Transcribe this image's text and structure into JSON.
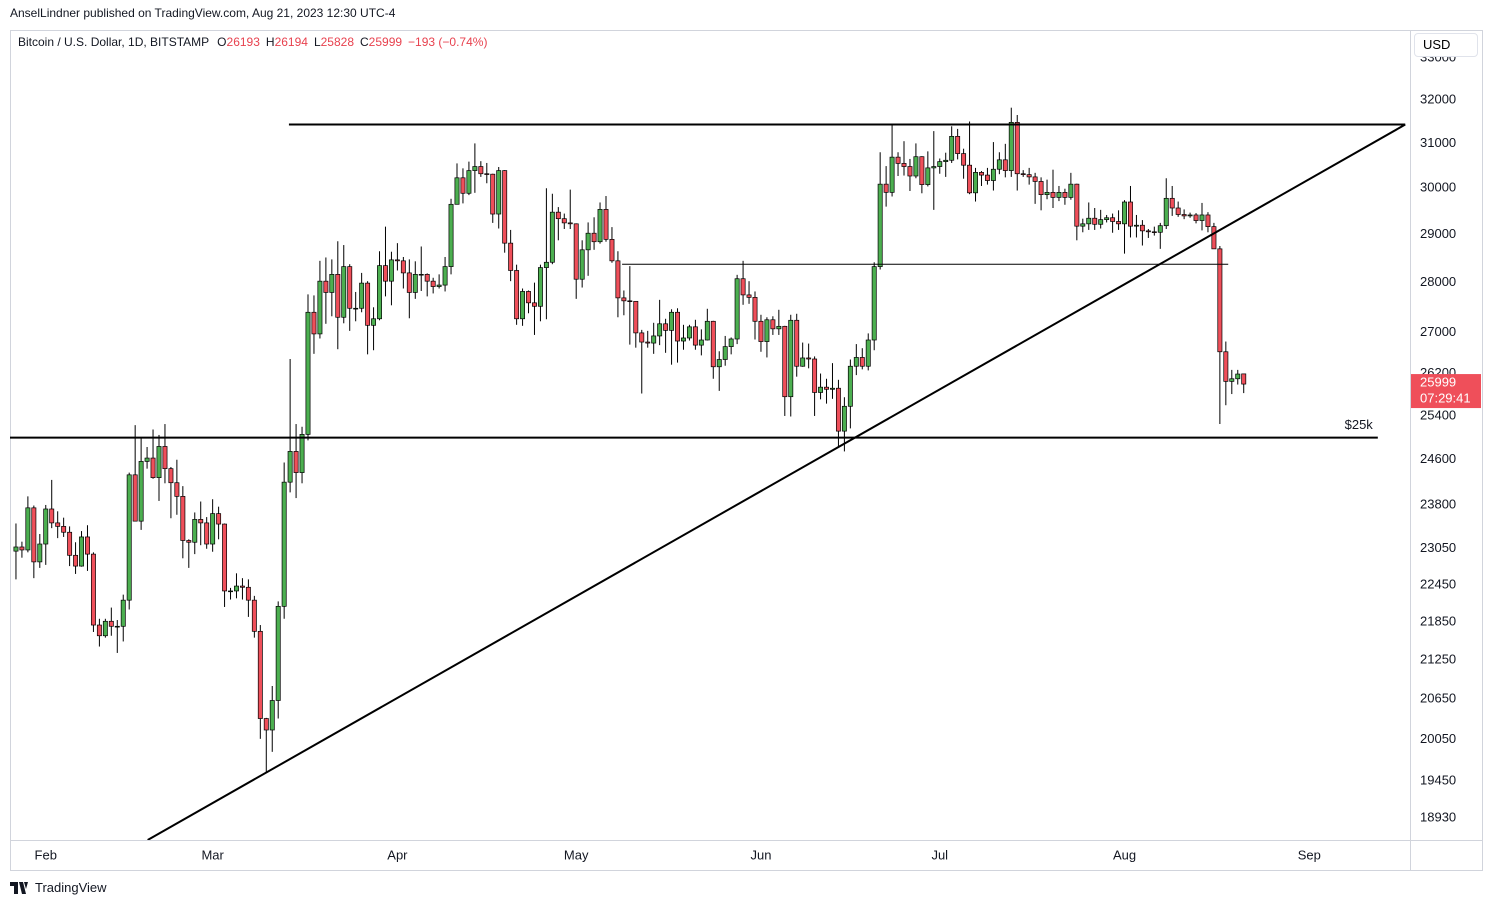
{
  "header": {
    "publisher": "AnselLindner published on TradingView.com, Aug 21, 2023 12:30 UTC-4"
  },
  "footer": {
    "brand": "TradingView"
  },
  "chart_data": {
    "type": "candlestick",
    "symbol": "Bitcoin / U.S. Dollar, 1D, BITSTAMP",
    "legend_letters": [
      "O",
      "H",
      "L",
      "C"
    ],
    "change": "−193 (−0.74%)",
    "currency": "USD",
    "countdown": "07:29:41",
    "log_scale": true,
    "grid": false,
    "up_color": "#4caf50",
    "down_color": "#ef4f5a",
    "wick_color": "#000000",
    "ylim": [
      18630,
      33630
    ],
    "yticks": [
      18930,
      19450,
      20050,
      20650,
      21250,
      21850,
      22450,
      23050,
      23800,
      24600,
      25400,
      26200,
      27000,
      28000,
      29000,
      30000,
      31000,
      32000,
      33000
    ],
    "xlim": [
      -1,
      233.9
    ],
    "xticks": [
      {
        "value": 5,
        "label": "Feb"
      },
      {
        "value": 33,
        "label": "Mar"
      },
      {
        "value": 64,
        "label": "Apr"
      },
      {
        "value": 94,
        "label": "May"
      },
      {
        "value": 125,
        "label": "Jun"
      },
      {
        "value": 155,
        "label": "Jul"
      },
      {
        "value": 186,
        "label": "Aug"
      },
      {
        "value": 217,
        "label": "Sep"
      }
    ],
    "ohlc": [
      [
        23010,
        23480,
        22540,
        23080
      ],
      [
        23080,
        23170,
        22900,
        23030
      ],
      [
        23030,
        23950,
        22990,
        23750
      ],
      [
        23750,
        23790,
        22560,
        22830
      ],
      [
        22830,
        23300,
        22730,
        23130
      ],
      [
        23130,
        23800,
        22780,
        23730
      ],
      [
        23730,
        24240,
        23400,
        23490
      ],
      [
        23490,
        23690,
        23230,
        23430
      ],
      [
        23430,
        23580,
        23250,
        23330
      ],
      [
        23330,
        23430,
        22760,
        22940
      ],
      [
        22940,
        23160,
        22630,
        22760
      ],
      [
        22760,
        23350,
        22750,
        23250
      ],
      [
        23250,
        23450,
        22680,
        22960
      ],
      [
        22960,
        22990,
        21690,
        21800
      ],
      [
        21800,
        21900,
        21460,
        21630
      ],
      [
        21630,
        21900,
        21600,
        21860
      ],
      [
        21860,
        22080,
        21630,
        21780
      ],
      [
        21780,
        21880,
        21360,
        21780
      ],
      [
        21780,
        22290,
        21540,
        22200
      ],
      [
        22200,
        24370,
        22050,
        24330
      ],
      [
        24330,
        25230,
        23520,
        23520
      ],
      [
        23520,
        24990,
        23370,
        24570
      ],
      [
        24570,
        24830,
        24440,
        24630
      ],
      [
        24630,
        25150,
        24260,
        24280
      ],
      [
        24280,
        25050,
        23870,
        24840
      ],
      [
        24840,
        25250,
        24180,
        24440
      ],
      [
        24440,
        24470,
        23570,
        24190
      ],
      [
        24190,
        24600,
        23630,
        23950
      ],
      [
        23950,
        24130,
        22890,
        23190
      ],
      [
        23190,
        23210,
        22730,
        23160
      ],
      [
        23160,
        23670,
        22960,
        23550
      ],
      [
        23550,
        23860,
        23110,
        23490
      ],
      [
        23490,
        23590,
        23050,
        23130
      ],
      [
        23130,
        23900,
        23000,
        23650
      ],
      [
        23650,
        23770,
        23210,
        23470
      ],
      [
        23470,
        23480,
        22090,
        22350
      ],
      [
        22350,
        22400,
        22210,
        22350
      ],
      [
        22350,
        22640,
        22230,
        22430
      ],
      [
        22430,
        22560,
        22210,
        22410
      ],
      [
        22410,
        22540,
        21930,
        22200
      ],
      [
        22200,
        22270,
        21600,
        21700
      ],
      [
        21700,
        21800,
        20060,
        20360
      ],
      [
        20360,
        20370,
        19570,
        20190
      ],
      [
        20190,
        20850,
        19870,
        20630
      ],
      [
        20630,
        22180,
        20360,
        22100
      ],
      [
        22100,
        24550,
        21900,
        24200
      ],
      [
        24200,
        26480,
        24020,
        24750
      ],
      [
        24750,
        25250,
        23920,
        24370
      ],
      [
        24370,
        25200,
        24180,
        25060
      ],
      [
        25060,
        27760,
        24950,
        27400
      ],
      [
        27400,
        27740,
        26580,
        26970
      ],
      [
        26970,
        28450,
        26880,
        28030
      ],
      [
        28030,
        28520,
        27170,
        27800
      ],
      [
        27800,
        28480,
        27320,
        28170
      ],
      [
        28170,
        28860,
        26670,
        27300
      ],
      [
        27300,
        28780,
        27180,
        28330
      ],
      [
        28330,
        28380,
        27030,
        27480
      ],
      [
        27480,
        27810,
        27220,
        27480
      ],
      [
        27480,
        28200,
        27400,
        27990
      ],
      [
        27990,
        28030,
        26570,
        27140
      ],
      [
        27140,
        27500,
        26650,
        27270
      ],
      [
        27270,
        28650,
        27240,
        28350
      ],
      [
        28350,
        29170,
        27720,
        28030
      ],
      [
        28030,
        28640,
        27540,
        28470
      ],
      [
        28470,
        28820,
        28250,
        28450
      ],
      [
        28450,
        28530,
        27880,
        28200
      ],
      [
        28200,
        28480,
        27280,
        27800
      ],
      [
        27800,
        28440,
        27670,
        28170
      ],
      [
        28170,
        28750,
        27830,
        28170
      ],
      [
        28170,
        28190,
        27720,
        28030
      ],
      [
        28030,
        28100,
        27780,
        27920
      ],
      [
        27920,
        28170,
        27880,
        27950
      ],
      [
        27950,
        28530,
        27820,
        28330
      ],
      [
        28330,
        29770,
        28170,
        29650
      ],
      [
        29650,
        30550,
        29650,
        30230
      ],
      [
        30230,
        30440,
        29670,
        29890
      ],
      [
        29890,
        30590,
        29850,
        30390
      ],
      [
        30390,
        31000,
        29900,
        30480
      ],
      [
        30480,
        30600,
        30250,
        30320
      ],
      [
        30320,
        30560,
        30110,
        30310
      ],
      [
        30310,
        30320,
        29250,
        29440
      ],
      [
        29440,
        30470,
        29130,
        30390
      ],
      [
        30390,
        30400,
        28620,
        28820
      ],
      [
        28820,
        29100,
        28030,
        28250
      ],
      [
        28250,
        28370,
        27150,
        27270
      ],
      [
        27270,
        27880,
        27130,
        27820
      ],
      [
        27820,
        27840,
        27380,
        27590
      ],
      [
        27590,
        28000,
        26950,
        27520
      ],
      [
        27520,
        28370,
        27220,
        28310
      ],
      [
        28310,
        30000,
        27260,
        28420
      ],
      [
        28420,
        29880,
        28380,
        29480
      ],
      [
        29480,
        29590,
        28880,
        29340
      ],
      [
        29340,
        29450,
        29120,
        29250
      ],
      [
        29250,
        29970,
        29120,
        29230
      ],
      [
        29230,
        29240,
        27670,
        28070
      ],
      [
        28070,
        28880,
        27900,
        28680
      ],
      [
        28680,
        29260,
        28140,
        29030
      ],
      [
        29030,
        29370,
        28680,
        28850
      ],
      [
        28850,
        29690,
        28810,
        29540
      ],
      [
        29540,
        29830,
        28850,
        28900
      ],
      [
        28900,
        29160,
        28410,
        28450
      ],
      [
        28450,
        28650,
        27300,
        27690
      ],
      [
        27690,
        27840,
        27340,
        27630
      ],
      [
        27630,
        28340,
        26760,
        27620
      ],
      [
        27620,
        27620,
        26700,
        26990
      ],
      [
        26990,
        27050,
        25820,
        26810
      ],
      [
        26810,
        27030,
        26700,
        26790
      ],
      [
        26790,
        27190,
        26580,
        26930
      ],
      [
        26930,
        27650,
        26750,
        27170
      ],
      [
        27170,
        27270,
        26600,
        27040
      ],
      [
        27040,
        27460,
        26370,
        27400
      ],
      [
        27400,
        27480,
        26410,
        26830
      ],
      [
        26830,
        27150,
        26660,
        26890
      ],
      [
        26890,
        27150,
        26840,
        27110
      ],
      [
        27110,
        27250,
        26660,
        26750
      ],
      [
        26750,
        27060,
        26550,
        26850
      ],
      [
        26850,
        27470,
        26840,
        27220
      ],
      [
        27220,
        27230,
        26100,
        26330
      ],
      [
        26330,
        26630,
        25870,
        26470
      ],
      [
        26470,
        26930,
        26350,
        26720
      ],
      [
        26720,
        26900,
        26570,
        26870
      ],
      [
        26870,
        28160,
        26770,
        28080
      ],
      [
        28080,
        28450,
        27550,
        27750
      ],
      [
        27750,
        28030,
        27570,
        27700
      ],
      [
        27700,
        27820,
        26860,
        27220
      ],
      [
        27220,
        27350,
        26620,
        26820
      ],
      [
        26820,
        27300,
        26510,
        27250
      ],
      [
        27250,
        27320,
        26950,
        27070
      ],
      [
        27070,
        27450,
        26950,
        27120
      ],
      [
        27120,
        27130,
        25400,
        25760
      ],
      [
        25760,
        27350,
        25390,
        27240
      ],
      [
        27240,
        27370,
        26140,
        26340
      ],
      [
        26340,
        26800,
        26330,
        26500
      ],
      [
        26500,
        26780,
        26300,
        26480
      ],
      [
        26480,
        26530,
        25400,
        25840
      ],
      [
        25840,
        26200,
        25710,
        25940
      ],
      [
        25940,
        26100,
        25630,
        25900
      ],
      [
        25900,
        26400,
        25720,
        25920
      ],
      [
        25920,
        26080,
        24820,
        25120
      ],
      [
        25120,
        25750,
        24750,
        25580
      ],
      [
        25580,
        26470,
        25170,
        26340
      ],
      [
        26340,
        26770,
        26170,
        26510
      ],
      [
        26510,
        26690,
        26280,
        26340
      ],
      [
        26340,
        26980,
        26260,
        26850
      ],
      [
        26850,
        28420,
        26650,
        28330
      ],
      [
        28330,
        30800,
        28270,
        30090
      ],
      [
        30090,
        30490,
        29600,
        29910
      ],
      [
        29910,
        31430,
        29820,
        30690
      ],
      [
        30690,
        30800,
        30270,
        30550
      ],
      [
        30550,
        31050,
        30280,
        30480
      ],
      [
        30480,
        30650,
        29940,
        30270
      ],
      [
        30270,
        31000,
        30220,
        30700
      ],
      [
        30700,
        30710,
        29890,
        30080
      ],
      [
        30080,
        30820,
        30040,
        30450
      ],
      [
        30450,
        31280,
        29530,
        30480
      ],
      [
        30480,
        30660,
        30320,
        30590
      ],
      [
        30590,
        30790,
        30250,
        30620
      ],
      [
        30620,
        31390,
        30560,
        31160
      ],
      [
        31160,
        31330,
        30640,
        30770
      ],
      [
        30770,
        30880,
        30210,
        30510
      ],
      [
        30510,
        31500,
        29870,
        29900
      ],
      [
        29900,
        30450,
        29710,
        30350
      ],
      [
        30350,
        30380,
        30050,
        30290
      ],
      [
        30290,
        30450,
        30080,
        30170
      ],
      [
        30170,
        31030,
        29950,
        30420
      ],
      [
        30420,
        30800,
        30310,
        30630
      ],
      [
        30630,
        30990,
        30240,
        30390
      ],
      [
        30390,
        31820,
        30250,
        31480
      ],
      [
        31480,
        31650,
        29950,
        30320
      ],
      [
        30320,
        30400,
        30250,
        30300
      ],
      [
        30300,
        30450,
        30080,
        30250
      ],
      [
        30250,
        30340,
        29660,
        30150
      ],
      [
        30150,
        30240,
        29520,
        29860
      ],
      [
        29860,
        30190,
        29760,
        29910
      ],
      [
        29910,
        30410,
        29570,
        29800
      ],
      [
        29800,
        30050,
        29720,
        29910
      ],
      [
        29910,
        29990,
        29640,
        29800
      ],
      [
        29800,
        30340,
        29750,
        30090
      ],
      [
        30090,
        30100,
        28880,
        29180
      ],
      [
        29180,
        29340,
        29050,
        29230
      ],
      [
        29230,
        29690,
        29100,
        29350
      ],
      [
        29350,
        29570,
        29100,
        29220
      ],
      [
        29220,
        29530,
        29130,
        29320
      ],
      [
        29320,
        29420,
        29260,
        29360
      ],
      [
        29360,
        29450,
        29040,
        29280
      ],
      [
        29280,
        29520,
        29100,
        29230
      ],
      [
        29230,
        29740,
        28600,
        29700
      ],
      [
        29700,
        30050,
        28940,
        29180
      ],
      [
        29180,
        29420,
        28940,
        29200
      ],
      [
        29200,
        29310,
        28770,
        29080
      ],
      [
        29080,
        29120,
        28930,
        29060
      ],
      [
        29060,
        29170,
        28980,
        29050
      ],
      [
        29050,
        29250,
        28700,
        29190
      ],
      [
        29190,
        30220,
        29120,
        29780
      ],
      [
        29780,
        30050,
        29400,
        29570
      ],
      [
        29570,
        29710,
        29380,
        29430
      ],
      [
        29430,
        29540,
        29330,
        29400
      ],
      [
        29400,
        29470,
        29360,
        29420
      ],
      [
        29420,
        29460,
        29240,
        29300
      ],
      [
        29300,
        29680,
        29090,
        29420
      ],
      [
        29420,
        29480,
        29050,
        29170
      ],
      [
        29170,
        29250,
        28700,
        28700
      ],
      [
        28700,
        28760,
        25250,
        26620
      ],
      [
        26620,
        26820,
        25600,
        26050
      ],
      [
        26050,
        26270,
        25810,
        26100
      ],
      [
        26100,
        26270,
        25990,
        26190
      ],
      [
        26193,
        26194,
        25828,
        25999
      ]
    ],
    "lines": [
      {
        "x": [
          45.8,
          233.1
        ],
        "y": [
          31430,
          31430
        ],
        "width": 2
      },
      {
        "x": [
          101.7,
          203.4
        ],
        "y": [
          28380,
          28380
        ],
        "width": 1
      },
      {
        "x": [
          -1,
          228.5
        ],
        "y": [
          25000,
          25000
        ],
        "width": 2,
        "label": "$25k"
      },
      {
        "x": [
          22.1,
          233.1
        ],
        "y": [
          18630,
          31430
        ],
        "width": 2
      }
    ]
  }
}
